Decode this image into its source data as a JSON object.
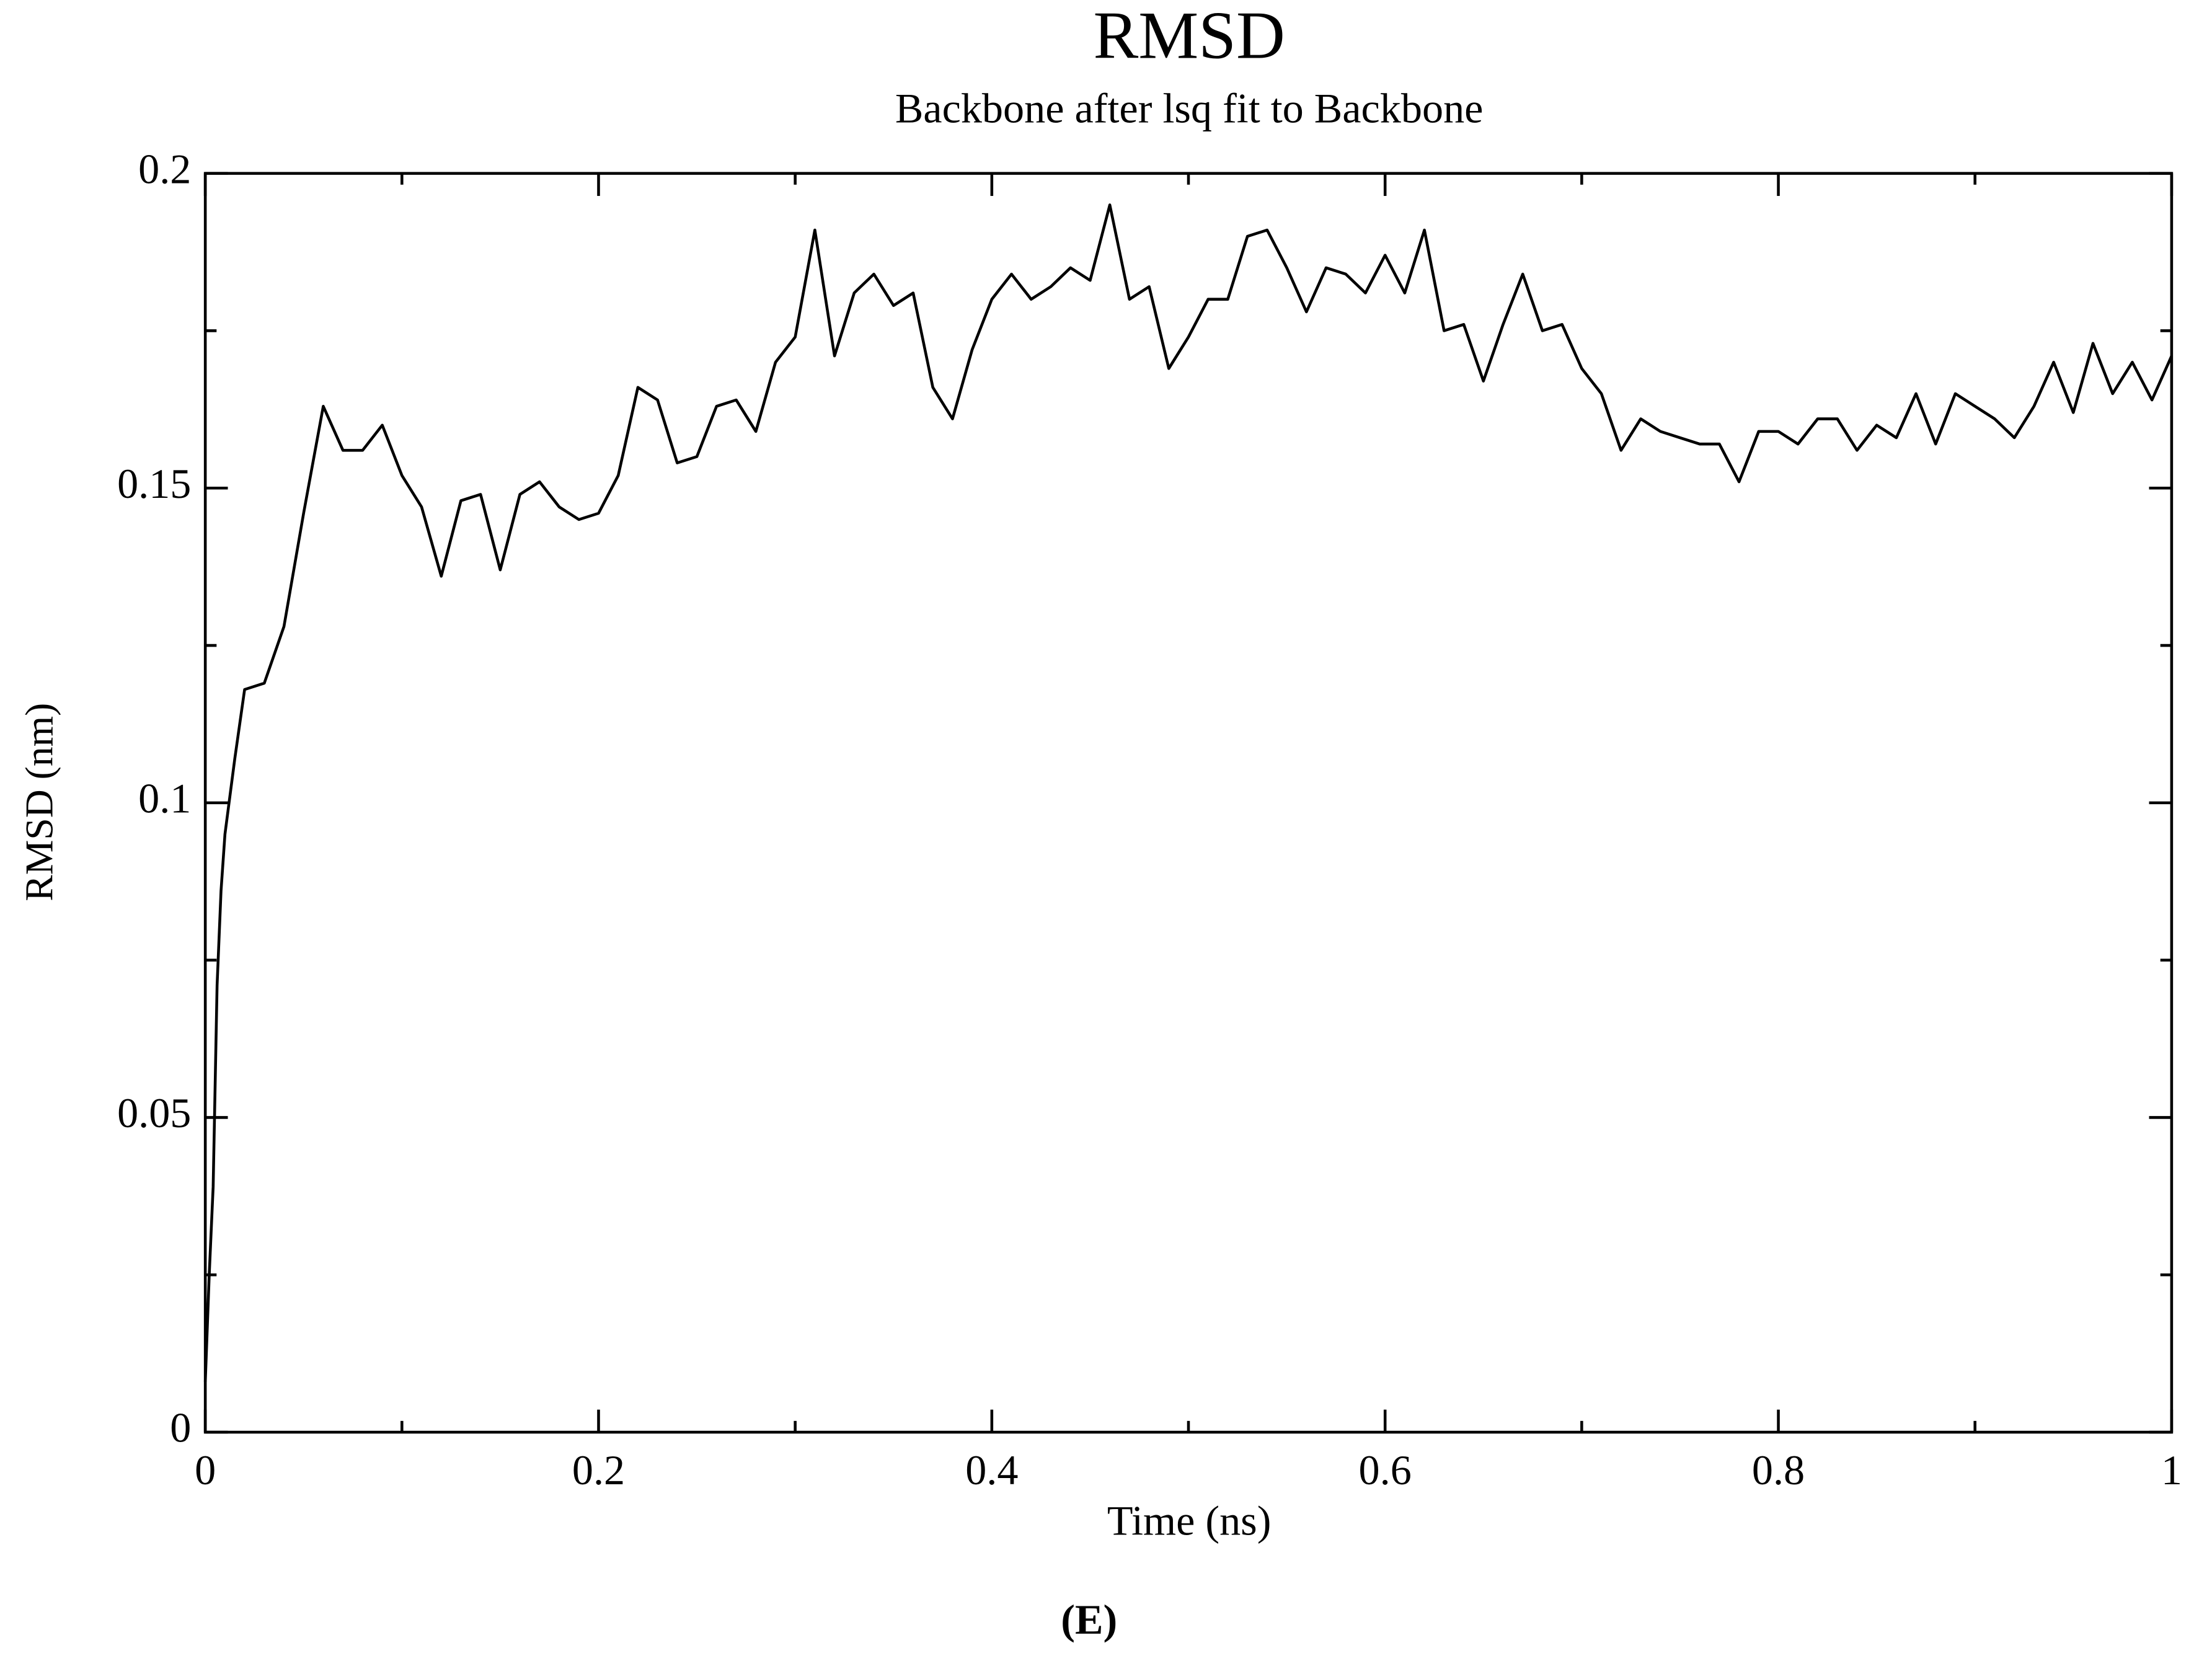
{
  "chart_data": {
    "type": "line",
    "title": "RMSD",
    "subtitle": "Backbone after lsq fit to Backbone",
    "xlabel": "Time (ns)",
    "ylabel": "RMSD (nm)",
    "caption": "(E)",
    "color": "#000000",
    "x": [
      0,
      0.002,
      0.004,
      0.006,
      0.008,
      0.01,
      0.015,
      0.02,
      0.03,
      0.04,
      0.05,
      0.06,
      0.07,
      0.08,
      0.09,
      0.1,
      0.11,
      0.12,
      0.13,
      0.14,
      0.15,
      0.16,
      0.17,
      0.18,
      0.19,
      0.2,
      0.21,
      0.22,
      0.23,
      0.24,
      0.25,
      0.26,
      0.27,
      0.28,
      0.29,
      0.3,
      0.31,
      0.32,
      0.33,
      0.34,
      0.35,
      0.36,
      0.37,
      0.38,
      0.39,
      0.4,
      0.41,
      0.42,
      0.43,
      0.44,
      0.45,
      0.46,
      0.47,
      0.48,
      0.49,
      0.5,
      0.51,
      0.52,
      0.53,
      0.54,
      0.55,
      0.56,
      0.57,
      0.58,
      0.59,
      0.6,
      0.61,
      0.62,
      0.63,
      0.64,
      0.65,
      0.66,
      0.67,
      0.68,
      0.69,
      0.7,
      0.71,
      0.72,
      0.73,
      0.74,
      0.75,
      0.76,
      0.77,
      0.78,
      0.79,
      0.8,
      0.81,
      0.82,
      0.83,
      0.84,
      0.85,
      0.86,
      0.87,
      0.88,
      0.89,
      0.9,
      0.91,
      0.92,
      0.93,
      0.94,
      0.95,
      0.96,
      0.97,
      0.98,
      0.99,
      1
    ],
    "values": [
      0.008,
      0.025,
      0.039,
      0.071,
      0.086,
      0.095,
      0.107,
      0.118,
      0.119,
      0.128,
      0.146,
      0.163,
      0.156,
      0.156,
      0.16,
      0.152,
      0.147,
      0.136,
      0.148,
      0.149,
      0.137,
      0.149,
      0.151,
      0.147,
      0.145,
      0.146,
      0.152,
      0.166,
      0.164,
      0.154,
      0.155,
      0.163,
      0.164,
      0.159,
      0.17,
      0.174,
      0.191,
      0.171,
      0.181,
      0.184,
      0.179,
      0.181,
      0.166,
      0.161,
      0.172,
      0.18,
      0.184,
      0.18,
      0.182,
      0.185,
      0.183,
      0.195,
      0.18,
      0.182,
      0.169,
      0.174,
      0.18,
      0.18,
      0.19,
      0.191,
      0.185,
      0.178,
      0.185,
      0.184,
      0.181,
      0.187,
      0.181,
      0.191,
      0.175,
      0.176,
      0.167,
      0.176,
      0.184,
      0.175,
      0.176,
      0.169,
      0.165,
      0.156,
      0.161,
      0.159,
      0.158,
      0.157,
      0.157,
      0.151,
      0.159,
      0.159,
      0.157,
      0.161,
      0.161,
      0.156,
      0.16,
      0.158,
      0.165,
      0.157,
      0.165,
      0.163,
      0.161,
      0.158,
      0.163,
      0.17,
      0.162,
      0.173,
      0.165,
      0.17,
      0.164,
      0.171
    ],
    "xlim": [
      0,
      1
    ],
    "xticks": [
      0,
      0.2,
      0.4,
      0.6,
      0.8,
      1
    ],
    "xminorticks": [
      0.1,
      0.3,
      0.5,
      0.7,
      0.9
    ],
    "ylim": [
      0,
      0.2
    ],
    "yticks": [
      0,
      0.05,
      0.1,
      0.15,
      0.2
    ],
    "yminorticks": [
      0.025,
      0.075,
      0.125,
      0.175
    ]
  }
}
